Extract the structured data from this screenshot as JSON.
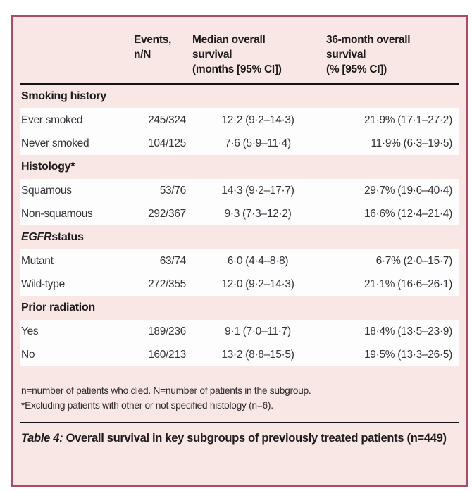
{
  "colors": {
    "panel_background": "#f9e7e6",
    "panel_border": "#a64d68",
    "row_background": "#fefdfd",
    "rule": "#141114"
  },
  "table": {
    "header": {
      "blank": "",
      "events": "Events,\nn/N",
      "median": "Median overall\nsurvival\n(months [95% CI])",
      "month36": "36-month overall\nsurvival\n(% [95% CI])"
    },
    "sections": [
      {
        "title_em": "",
        "title_text": "Smoking history",
        "rows": [
          {
            "label": "Ever smoked",
            "events": "245/324",
            "median": "12·2 (9·2–14·3)",
            "survival36": "21·9% (17·1–27·2)"
          },
          {
            "label": "Never smoked",
            "events": "104/125",
            "median": "7·6 (5·9–11·4)",
            "survival36": "11·9% (6·3–19·5)"
          }
        ]
      },
      {
        "title_em": "",
        "title_text": "Histology*",
        "rows": [
          {
            "label": "Squamous",
            "events": "53/76",
            "median": "14·3 (9·2–17·7)",
            "survival36": "29·7% (19·6–40·4)"
          },
          {
            "label": "Non-squamous",
            "events": "292/367",
            "median": "9·3 (7·3–12·2)",
            "survival36": "16·6% (12·4–21·4)"
          }
        ]
      },
      {
        "title_em": "EGFR",
        "title_text": " status",
        "rows": [
          {
            "label": "Mutant",
            "events": "63/74",
            "median": "6·0 (4·4–8·8)",
            "survival36": "6·7% (2·0–15·7)"
          },
          {
            "label": "Wild-type",
            "events": "272/355",
            "median": "12·0 (9·2–14·3)",
            "survival36": "21·1% (16·6–26·1)"
          }
        ]
      },
      {
        "title_em": "",
        "title_text": "Prior radiation",
        "rows": [
          {
            "label": "Yes",
            "events": "189/236",
            "median": "9·1 (7·0–11·7)",
            "survival36": "18·4% (13·5–23·9)"
          },
          {
            "label": "No",
            "events": "160/213",
            "median": "13·2 (8·8–15·5)",
            "survival36": "19·5% (13·3–26·5)"
          }
        ]
      }
    ]
  },
  "footnotes": [
    "n=number of patients who died. N=number of patients in the subgroup.",
    "*Excluding patients with other or not specified histology (n=6)."
  ],
  "caption": {
    "label": "Table 4:",
    "text": " Overall survival in key subgroups of previously treated patients (n=449)"
  }
}
